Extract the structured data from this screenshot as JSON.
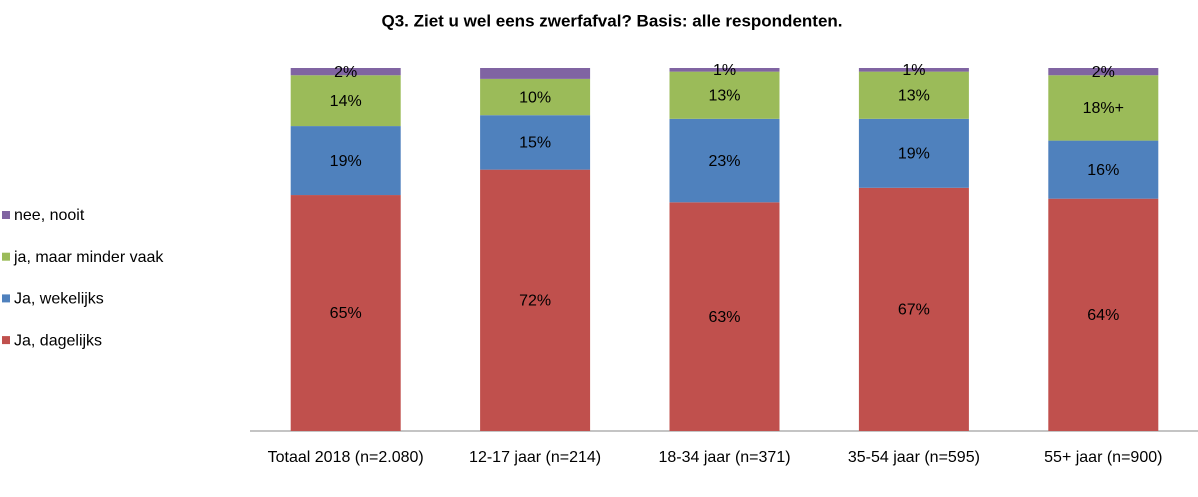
{
  "chart_data": {
    "type": "stacked_bar",
    "title": "Q3. Ziet u wel eens zwerfafval? Basis: alle respondenten.",
    "categories": [
      "Totaal 2018 (n=2.080)",
      "12-17 jaar (n=214)",
      "18-34 jaar (n=371)",
      "35-54 jaar (n=595)",
      "55+ jaar (n=900)"
    ],
    "ylim": [
      0,
      100
    ],
    "series": [
      {
        "name": "Ja, dagelijks",
        "color": "#c0504d",
        "values": [
          65,
          72,
          63,
          67,
          64
        ],
        "value_labels": [
          "65%",
          "72%",
          "63%",
          "67%",
          "64%"
        ]
      },
      {
        "name": "Ja, wekelijks",
        "color": "#4f81bd",
        "values": [
          19,
          15,
          23,
          19,
          16
        ],
        "value_labels": [
          "19%",
          "15%",
          "23%",
          "19%",
          "16%"
        ]
      },
      {
        "name": "ja, maar minder vaak",
        "color": "#9bbb59",
        "values": [
          14,
          10,
          13,
          13,
          18
        ],
        "value_labels": [
          "14%",
          "10%",
          "13%",
          "13%",
          "18%+"
        ]
      },
      {
        "name": "nee, nooit",
        "color": "#8064a2",
        "values": [
          2,
          3,
          1,
          1,
          2
        ],
        "value_labels": [
          "2%",
          null,
          "1%",
          "1%",
          "2%"
        ]
      }
    ],
    "legend": "left"
  }
}
